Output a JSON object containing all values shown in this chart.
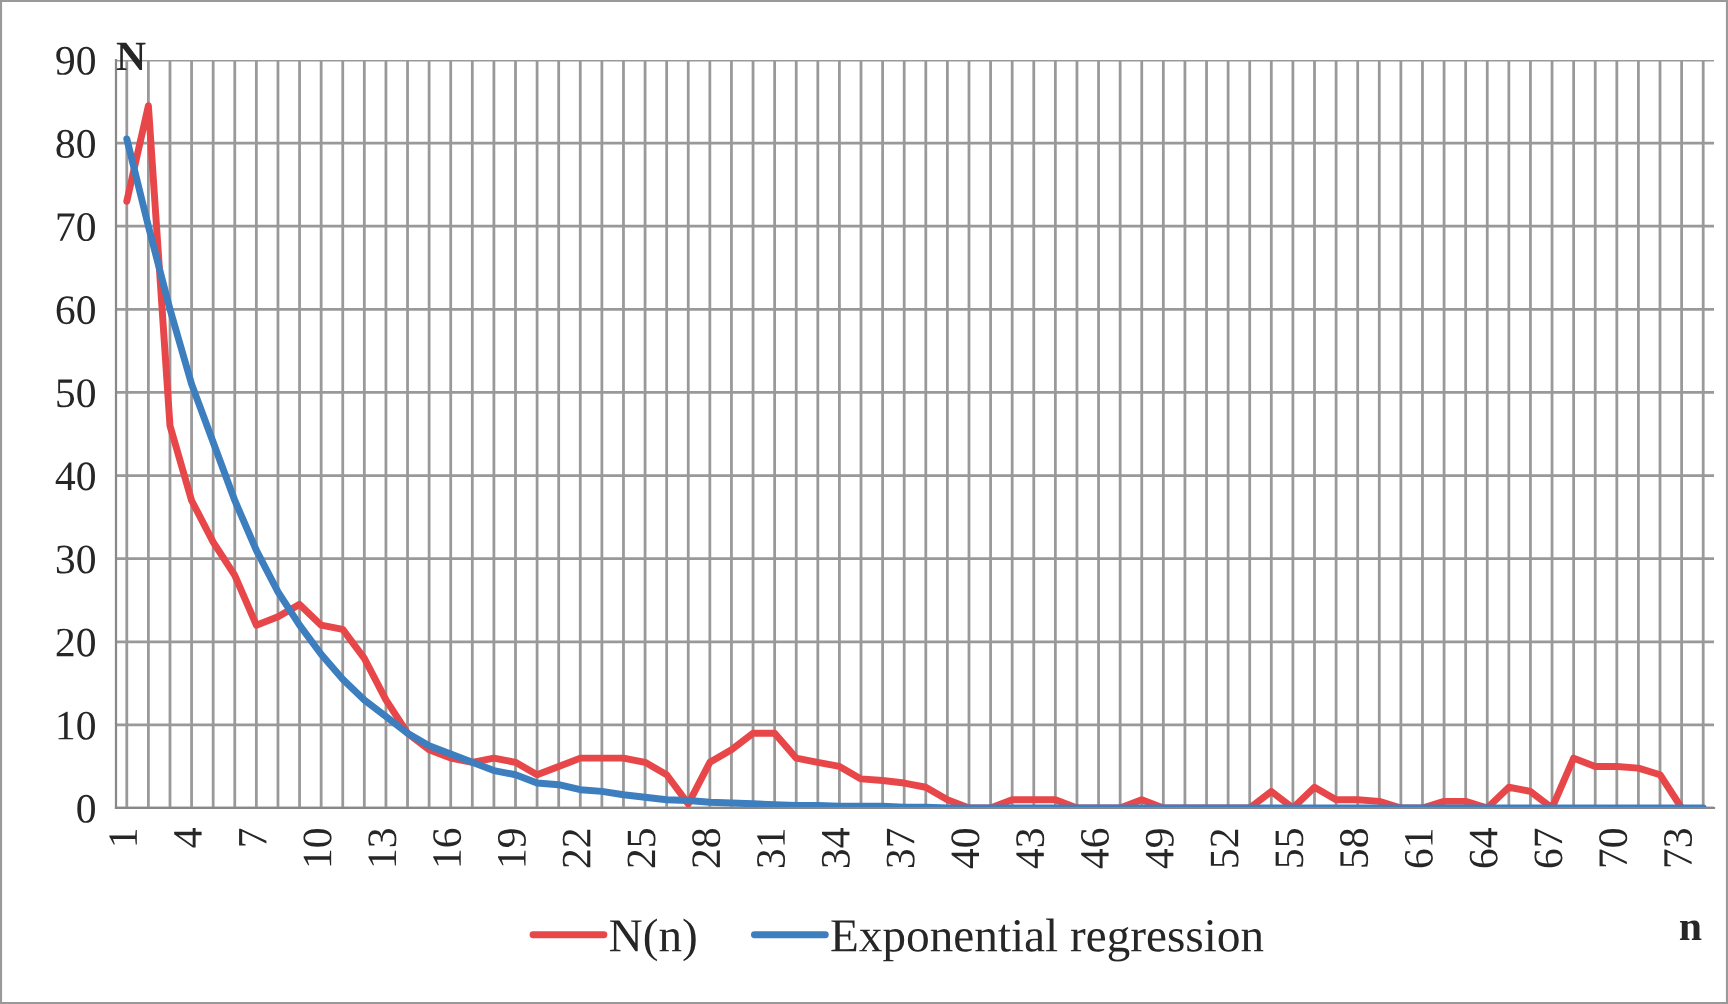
{
  "chart_data": {
    "type": "line",
    "ylabel": "N",
    "xlabel": "n",
    "categories": [
      "1",
      null,
      null,
      "4",
      null,
      null,
      "7",
      null,
      null,
      "10",
      null,
      null,
      "13",
      null,
      null,
      "16",
      null,
      null,
      "19",
      null,
      null,
      "22",
      null,
      null,
      "25",
      null,
      null,
      "28",
      null,
      null,
      "31",
      null,
      null,
      "34",
      null,
      null,
      "37",
      null,
      null,
      "40",
      null,
      null,
      "43",
      null,
      null,
      "46",
      null,
      null,
      "49",
      null,
      null,
      "52",
      null,
      null,
      "55",
      null,
      null,
      "58",
      null,
      null,
      "61",
      null,
      null,
      "64",
      null,
      null,
      "67",
      null,
      null,
      "70",
      null,
      null,
      "73",
      null
    ],
    "series": [
      {
        "name": "N(n)",
        "color": "#e8474a",
        "values": [
          73,
          84.5,
          46,
          37,
          32,
          28,
          22,
          23,
          24.5,
          22,
          21.5,
          18,
          13,
          9,
          7,
          6,
          5.5,
          6,
          5.5,
          4,
          5,
          6,
          6,
          6,
          5.5,
          4,
          0.5,
          5.5,
          7,
          9,
          9,
          6,
          5.5,
          5,
          3.5,
          3.3,
          3,
          2.5,
          1,
          0,
          0,
          1,
          1,
          1,
          0,
          0,
          0,
          1,
          0,
          0,
          0,
          0,
          0,
          2,
          0,
          2.5,
          1,
          1,
          0.8,
          0,
          0,
          0.8,
          0.8,
          0,
          2.5,
          2,
          0,
          6,
          5,
          5,
          4.8,
          4,
          0,
          null
        ]
      },
      {
        "name": "Exponential regression",
        "color": "#3d7ebf",
        "values": [
          80.5,
          70,
          60,
          51,
          44,
          37,
          31,
          26,
          22,
          18.5,
          15.5,
          13,
          11,
          9,
          7.5,
          6.5,
          5.5,
          4.5,
          4,
          3,
          2.8,
          2.2,
          2,
          1.6,
          1.3,
          1,
          0.9,
          0.7,
          0.6,
          0.5,
          0.4,
          0.3,
          0.3,
          0.2,
          0.2,
          0.2,
          0.1,
          0.1,
          0,
          0,
          0,
          0,
          0,
          0,
          0,
          0,
          0,
          0,
          0,
          0,
          0,
          0,
          0,
          0,
          0,
          0,
          0,
          0,
          0,
          0,
          0,
          0,
          0,
          0,
          0,
          0,
          0,
          0,
          0,
          0,
          0,
          0,
          0,
          0
        ]
      }
    ],
    "ylim": [
      0,
      90
    ],
    "yticks": [
      0,
      10,
      20,
      30,
      40,
      50,
      60,
      70,
      80,
      90
    ],
    "grid": true,
    "legend": "bottom",
    "marker": "none",
    "line_style": "solid"
  }
}
